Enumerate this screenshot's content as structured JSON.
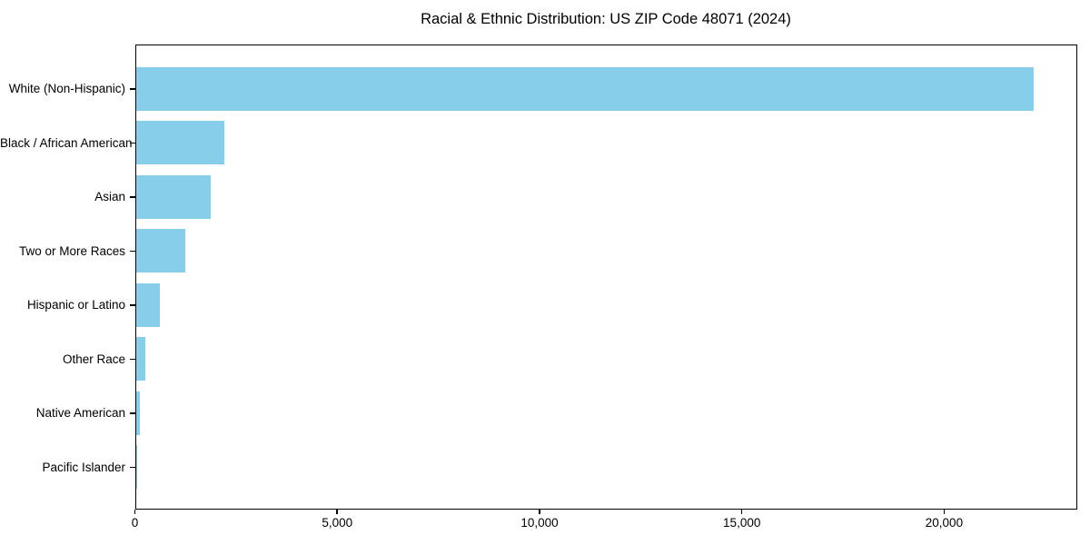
{
  "chart_data": {
    "type": "bar",
    "orientation": "horizontal",
    "title": "Racial & Ethnic Distribution: US ZIP Code 48071 (2024)",
    "categories": [
      "White (Non-Hispanic)",
      "Black / African American",
      "Asian",
      "Two or More Races",
      "Hispanic or Latino",
      "Other Race",
      "Native American",
      "Pacific Islander"
    ],
    "values": [
      22180,
      2190,
      1850,
      1220,
      600,
      230,
      95,
      10
    ],
    "title_color": "#000000",
    "bar_color": "#87CEEB",
    "axis_color": "#000000",
    "background_color": "#ffffff",
    "xlabel": "",
    "ylabel": "",
    "xlim": [
      0,
      23290
    ],
    "x_ticks": [
      0,
      5000,
      10000,
      15000,
      20000
    ],
    "x_tick_labels": [
      "0",
      "5,000",
      "10,000",
      "15,000",
      "20,000"
    ],
    "grid": false,
    "legend": null
  }
}
